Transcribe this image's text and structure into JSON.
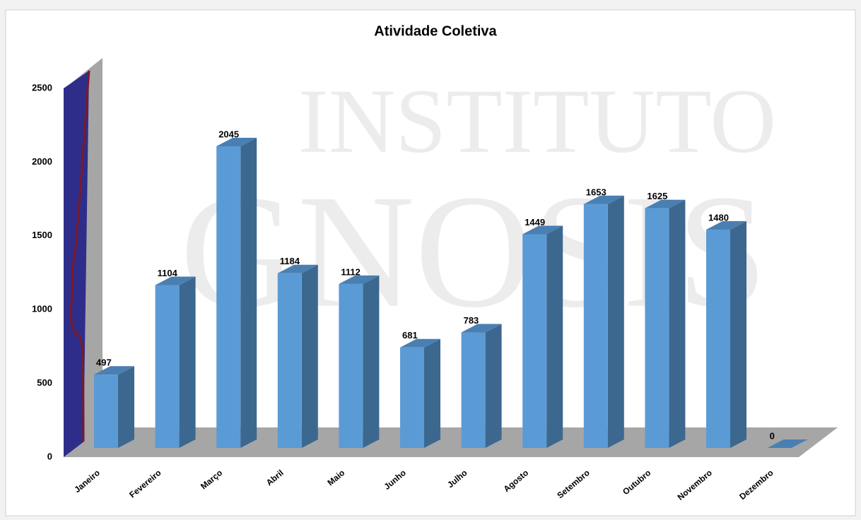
{
  "chart_data": {
    "type": "bar3d",
    "title": "Atividade Coletiva",
    "watermark": [
      "INSTITUTO",
      "GNOSIS"
    ],
    "categories": [
      "Janeiro",
      "Fevereiro",
      "Março",
      "Abril",
      "Maio",
      "Junho",
      "Julho",
      "Agosto",
      "Setembro",
      "Outubro",
      "Novembro",
      "Dezembro"
    ],
    "values": [
      497,
      1104,
      2045,
      1184,
      1112,
      681,
      783,
      1449,
      1653,
      1625,
      1480,
      0
    ],
    "color": "#5b9bd5",
    "ylim": [
      0,
      2500
    ],
    "yticks": [
      0,
      500,
      1000,
      1500,
      2000,
      2500
    ],
    "grid": false
  }
}
